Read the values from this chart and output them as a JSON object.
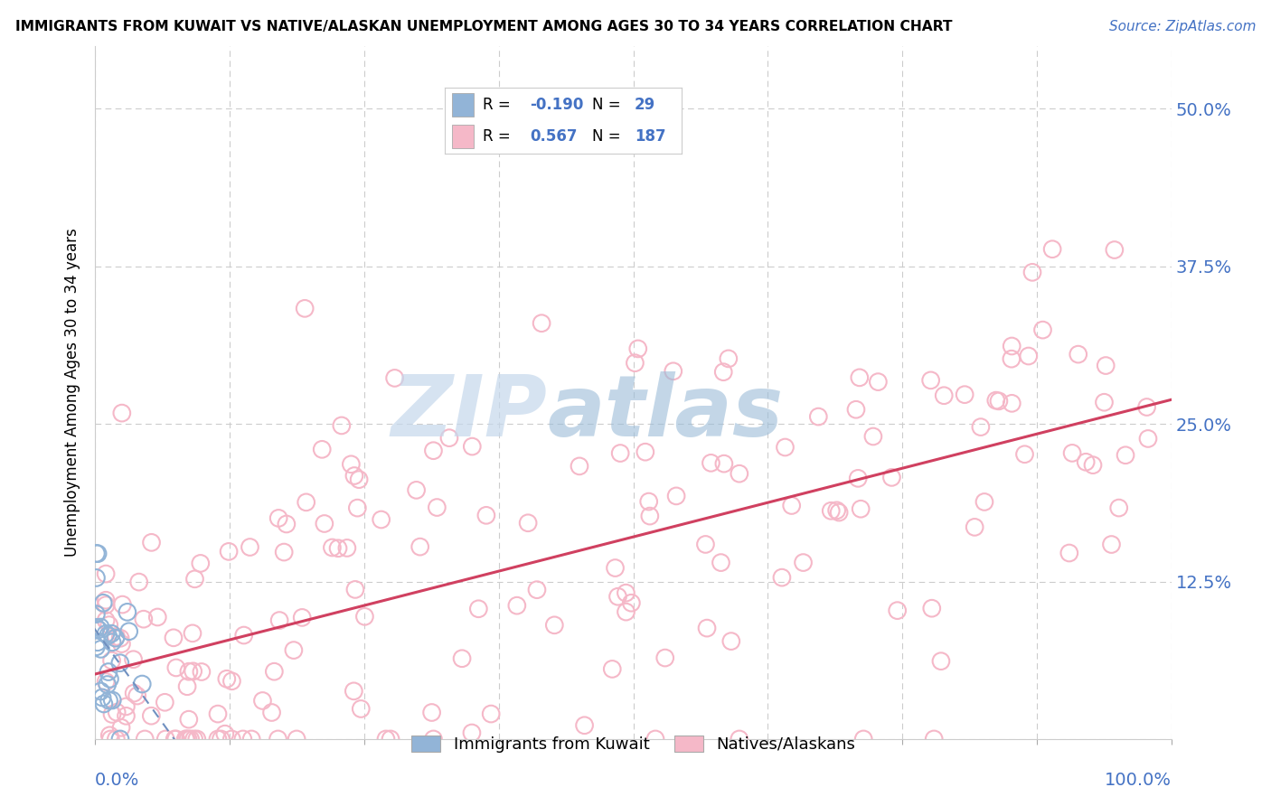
{
  "title": "IMMIGRANTS FROM KUWAIT VS NATIVE/ALASKAN UNEMPLOYMENT AMONG AGES 30 TO 34 YEARS CORRELATION CHART",
  "source": "Source: ZipAtlas.com",
  "ylabel": "Unemployment Among Ages 30 to 34 years",
  "xlim": [
    0.0,
    1.0
  ],
  "ylim": [
    0.0,
    0.55
  ],
  "ytick_vals": [
    0.0,
    0.125,
    0.25,
    0.375,
    0.5
  ],
  "ytick_labels": [
    "",
    "12.5%",
    "25.0%",
    "37.5%",
    "50.0%"
  ],
  "background_color": "#ffffff",
  "grid_color": "#cccccc",
  "label_color": "#4472c4",
  "legend_R1": "-0.190",
  "legend_N1": "29",
  "legend_R2": "0.567",
  "legend_N2": "187",
  "blue_color": "#92b4d7",
  "pink_color": "#f5b8c8",
  "reg_pink_color": "#d04060",
  "reg_blue_color": "#7090c0",
  "watermark_zip": "ZIP",
  "watermark_atlas": "atlas",
  "legend_label1": "Immigrants from Kuwait",
  "legend_label2": "Natives/Alaskans"
}
